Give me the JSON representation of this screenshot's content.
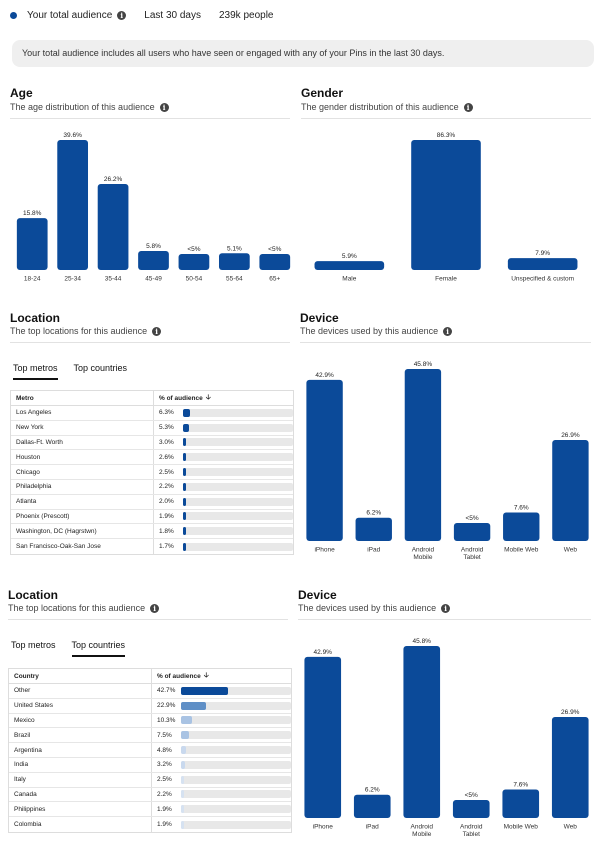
{
  "header": {
    "audience_label": "Your total audience",
    "period": "Last 30 days",
    "people": "239k people"
  },
  "notice": "Your total audience includes all users who have seen or engaged with any of your Pins in the last 30 days.",
  "age": {
    "title": "Age",
    "subtitle": "The age distribution of this audience",
    "chart_data": {
      "type": "bar",
      "categories": [
        "18-24",
        "25-34",
        "35-44",
        "45-49",
        "50-54",
        "55-64",
        "65+"
      ],
      "values": [
        15.8,
        39.6,
        26.2,
        5.8,
        4.5,
        5.1,
        4.5
      ],
      "labels": [
        "15.8%",
        "39.6%",
        "26.2%",
        "5.8%",
        "<5%",
        "5.1%",
        "<5%"
      ],
      "color": "#0b4a99"
    }
  },
  "gender": {
    "title": "Gender",
    "subtitle": "The gender distribution of this audience",
    "chart_data": {
      "type": "bar",
      "categories": [
        "Male",
        "Female",
        "Unspecified & custom"
      ],
      "values": [
        5.9,
        86.3,
        7.9
      ],
      "labels": [
        "5.9%",
        "86.3%",
        "7.9%"
      ],
      "color": "#0b4a99"
    }
  },
  "location1": {
    "title": "Location",
    "subtitle": "The top locations for this audience",
    "tabs": [
      {
        "label": "Top metros",
        "active": true
      },
      {
        "label": "Top countries",
        "active": false
      }
    ],
    "col1": "Metro",
    "col2": "% of audience",
    "chart_data": {
      "type": "table",
      "rows": [
        {
          "name": "Los Angeles",
          "pct": "6.3%",
          "value": 6.3,
          "color": "#0b4a99"
        },
        {
          "name": "New York",
          "pct": "5.3%",
          "value": 5.3,
          "color": "#0b4a99"
        },
        {
          "name": "Dallas-Ft. Worth",
          "pct": "3.0%",
          "value": 3.0,
          "color": "#0b4a99"
        },
        {
          "name": "Houston",
          "pct": "2.6%",
          "value": 2.6,
          "color": "#0b4a99"
        },
        {
          "name": "Chicago",
          "pct": "2.5%",
          "value": 2.5,
          "color": "#0b4a99"
        },
        {
          "name": "Philadelphia",
          "pct": "2.2%",
          "value": 2.2,
          "color": "#0b4a99"
        },
        {
          "name": "Atlanta",
          "pct": "2.0%",
          "value": 2.0,
          "color": "#0b4a99"
        },
        {
          "name": "Phoenix (Prescott)",
          "pct": "1.9%",
          "value": 1.9,
          "color": "#0b4a99"
        },
        {
          "name": "Washington, DC (Hagrstwn)",
          "pct": "1.8%",
          "value": 1.8,
          "color": "#0b4a99"
        },
        {
          "name": "San Francisco-Oak-San Jose",
          "pct": "1.7%",
          "value": 1.7,
          "color": "#0b4a99"
        }
      ]
    }
  },
  "device1": {
    "title": "Device",
    "subtitle": "The devices used by this audience",
    "chart_data": {
      "type": "bar",
      "categories": [
        "iPhone",
        "iPad",
        "Android Mobile",
        "Android Tablet",
        "Mobile Web",
        "Web"
      ],
      "values": [
        42.9,
        6.2,
        45.8,
        4.5,
        7.6,
        26.9
      ],
      "labels": [
        "42.9%",
        "6.2%",
        "45.8%",
        "<5%",
        "7.6%",
        "26.9%"
      ],
      "color": "#0b4a99"
    }
  },
  "location2": {
    "title": "Location",
    "subtitle": "The top locations for this audience",
    "tabs": [
      {
        "label": "Top metros",
        "active": false
      },
      {
        "label": "Top countries",
        "active": true
      }
    ],
    "col1": "Country",
    "col2": "% of audience",
    "chart_data": {
      "type": "table",
      "rows": [
        {
          "name": "Other",
          "pct": "42.7%",
          "value": 42.7,
          "color": "#0b4a99"
        },
        {
          "name": "United States",
          "pct": "22.9%",
          "value": 22.9,
          "color": "#5f8fc6"
        },
        {
          "name": "Mexico",
          "pct": "10.3%",
          "value": 10.3,
          "color": "#a9c3e3"
        },
        {
          "name": "Brazil",
          "pct": "7.5%",
          "value": 7.5,
          "color": "#a9c3e3"
        },
        {
          "name": "Argentina",
          "pct": "4.8%",
          "value": 4.8,
          "color": "#c9d9ee"
        },
        {
          "name": "India",
          "pct": "3.2%",
          "value": 3.2,
          "color": "#c9d9ee"
        },
        {
          "name": "Italy",
          "pct": "2.5%",
          "value": 2.5,
          "color": "#d6e2f1"
        },
        {
          "name": "Canada",
          "pct": "2.2%",
          "value": 2.2,
          "color": "#d6e2f1"
        },
        {
          "name": "Philippines",
          "pct": "1.9%",
          "value": 1.9,
          "color": "#d6e2f1"
        },
        {
          "name": "Colombia",
          "pct": "1.9%",
          "value": 1.9,
          "color": "#d6e2f1"
        }
      ]
    }
  },
  "device2": {
    "title": "Device",
    "subtitle": "The devices used by this audience",
    "chart_data": {
      "type": "bar",
      "categories": [
        "iPhone",
        "iPad",
        "Android Mobile",
        "Android Tablet",
        "Mobile Web",
        "Web"
      ],
      "values": [
        42.9,
        6.2,
        45.8,
        4.5,
        7.6,
        26.9
      ],
      "labels": [
        "42.9%",
        "6.2%",
        "45.8%",
        "<5%",
        "7.6%",
        "26.9%"
      ],
      "color": "#0b4a99"
    }
  }
}
